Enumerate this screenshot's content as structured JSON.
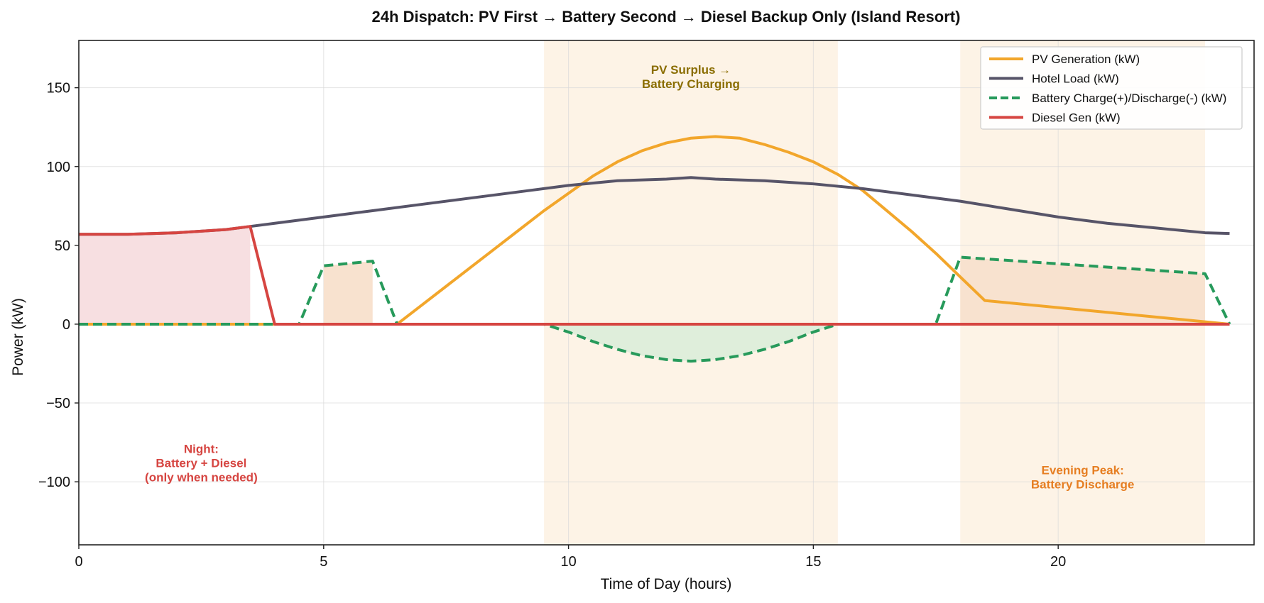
{
  "chart_data": {
    "type": "line",
    "title": "24h Dispatch: PV First → Battery Second → Diesel Backup Only (Island Resort)",
    "xlabel": "Time of Day (hours)",
    "ylabel": "Power (kW)",
    "xlim": [
      0,
      24
    ],
    "ylim": [
      -140,
      180
    ],
    "xticks": [
      0,
      5,
      10,
      15,
      20
    ],
    "yticks": [
      -100,
      -50,
      0,
      50,
      100,
      150
    ],
    "grid": true,
    "legend_position": "top-right",
    "colors": {
      "pv": "#f2a62b",
      "load": "#575468",
      "battery": "#279a5b",
      "diesel": "#d64541",
      "shade_band": "#fdf3e6",
      "diesel_fill": "#f7dfe1",
      "battery_fill_pos": "#f8e2cf",
      "battery_fill_neg": "#dfeedb",
      "annotation_pv": "#8a6d00",
      "annotation_night": "#d64541",
      "annotation_evening": "#e67e22"
    },
    "shaded_bands": [
      {
        "x0": 9.5,
        "x1": 15.5
      },
      {
        "x0": 18.0,
        "x1": 23.0
      }
    ],
    "annotations": [
      {
        "lines": [
          "PV Surplus →",
          "Battery Charging"
        ],
        "x": 12.5,
        "y": 157,
        "color_key": "annotation_pv"
      },
      {
        "lines": [
          "Night:",
          "Battery + Diesel",
          "(only when needed)"
        ],
        "x": 2.5,
        "y": -88,
        "color_key": "annotation_night"
      },
      {
        "lines": [
          "Evening Peak:",
          "Battery Discharge"
        ],
        "x": 20.5,
        "y": -97,
        "color_key": "annotation_evening"
      }
    ],
    "series": [
      {
        "name": "PV Generation (kW)",
        "key": "pv",
        "style": "solid",
        "x": [
          0,
          6.5,
          7,
          7.5,
          8,
          8.5,
          9,
          9.5,
          10,
          10.5,
          11,
          11.5,
          12,
          12.5,
          13,
          13.5,
          14,
          14.5,
          15,
          15.5,
          16,
          16.5,
          17,
          17.5,
          18,
          18.5,
          23.5
        ],
        "values": [
          0,
          0,
          12,
          24,
          36,
          48,
          60,
          72,
          83,
          94,
          103,
          110,
          115,
          118,
          119,
          118,
          114,
          109,
          103,
          95,
          85,
          72,
          59,
          45,
          30,
          15,
          0
        ]
      },
      {
        "name": "Hotel Load (kW)",
        "key": "load",
        "style": "solid",
        "x": [
          0,
          0.5,
          1,
          2,
          3,
          3.5,
          4,
          5,
          6,
          7,
          8,
          9,
          10,
          11,
          12,
          12.5,
          13,
          14,
          15,
          16,
          17,
          18,
          19,
          20,
          21,
          22,
          23,
          23.5
        ],
        "values": [
          57,
          57,
          57,
          58,
          60,
          62,
          64,
          68,
          72,
          76,
          80,
          84,
          88,
          91,
          92,
          93,
          92,
          91,
          89,
          86,
          82,
          78,
          73,
          68,
          64,
          61,
          58,
          57.5
        ]
      },
      {
        "name": "Battery Charge(+)/Discharge(-) (kW)",
        "key": "battery",
        "style": "dashed",
        "x": [
          0,
          4.5,
          5,
          6,
          6.5,
          9.5,
          10,
          10.5,
          11,
          11.5,
          12,
          12.5,
          13,
          13.5,
          14,
          14.5,
          15,
          15.5,
          17.5,
          18,
          23,
          23.5
        ],
        "values": [
          0,
          0,
          37,
          40,
          0,
          0,
          -5,
          -11,
          -16,
          -20,
          -22.5,
          -23.5,
          -22.5,
          -20,
          -16,
          -11,
          -5,
          0,
          0,
          42.5,
          32,
          0
        ]
      },
      {
        "name": "Diesel Gen (kW)",
        "key": "diesel",
        "style": "solid",
        "x": [
          0,
          0.5,
          1,
          2,
          3,
          3.5,
          4,
          23.5
        ],
        "values": [
          57,
          57,
          57,
          58,
          60,
          62,
          0,
          0
        ]
      }
    ],
    "fills": [
      {
        "key": "diesel_fill",
        "x": [
          0,
          0.5,
          1,
          2,
          3,
          3.5
        ],
        "values": [
          57,
          57,
          57,
          58,
          60,
          62
        ]
      },
      {
        "key": "battery_fill_pos",
        "x": [
          5,
          6
        ],
        "values": [
          37,
          40
        ]
      },
      {
        "key": "battery_fill_neg",
        "x": [
          9.5,
          10,
          10.5,
          11,
          11.5,
          12,
          12.5,
          13,
          13.5,
          14,
          14.5,
          15,
          15.5
        ],
        "values": [
          0,
          -5,
          -11,
          -16,
          -20,
          -22.5,
          -23.5,
          -22.5,
          -20,
          -16,
          -11,
          -5,
          0
        ]
      },
      {
        "key": "battery_fill_pos",
        "x": [
          18,
          23
        ],
        "values": [
          42.5,
          32
        ]
      }
    ]
  }
}
